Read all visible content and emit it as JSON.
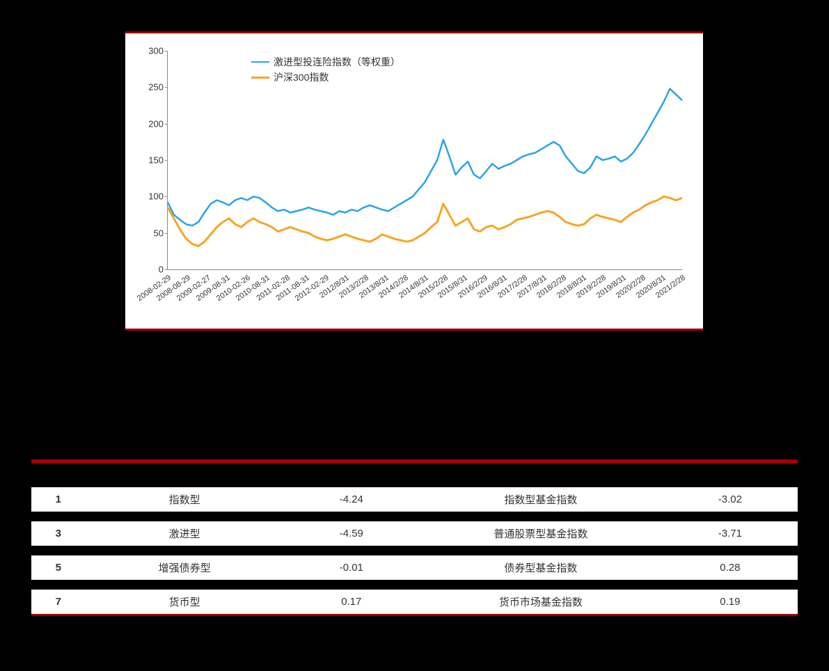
{
  "chart": {
    "type": "line",
    "background_color": "#ffffff",
    "border_rule_color": "#a00000",
    "axis_color": "#888888",
    "ylim": [
      0,
      300
    ],
    "ytick_step": 50,
    "yticks": [
      0,
      50,
      100,
      150,
      200,
      250,
      300
    ],
    "x_labels": [
      "2008-02-29",
      "2008-08-29",
      "2009-02-27",
      "2009-08-31",
      "2010-02-26",
      "2010-08-31",
      "2011-02-28",
      "2011-08-31",
      "2012-02-29",
      "2012/8/31",
      "2013/2/28",
      "2013/8/31",
      "2014/2/28",
      "2014/8/31",
      "2015/2/28",
      "2015/8/31",
      "2016/2/29",
      "2016/8/31",
      "2017/2/28",
      "2017/8/31",
      "2018/2/28",
      "2018/8/31",
      "2019/2/28",
      "2019/8/31",
      "2020/2/28",
      "2020/8/31",
      "2021/2/28"
    ],
    "x_label_fontsize": 11,
    "y_label_fontsize": 13,
    "x_label_rotation_deg": -35,
    "legend": {
      "position": "top-inside-left",
      "fontsize": 14,
      "items": [
        {
          "label": "激进型投连险指数（等权重）",
          "color": "#2aa3e8",
          "width": 2.5
        },
        {
          "label": "沪深300指数",
          "color": "#f5a623",
          "width": 3
        }
      ]
    },
    "series": [
      {
        "name": "激进型投连险指数（等权重）",
        "color": "#2aa3e8",
        "line_width": 2.5,
        "data": [
          92,
          75,
          68,
          62,
          60,
          65,
          78,
          90,
          95,
          92,
          88,
          95,
          98,
          95,
          100,
          98,
          92,
          85,
          80,
          82,
          78,
          80,
          82,
          85,
          82,
          80,
          78,
          75,
          80,
          78,
          82,
          80,
          85,
          88,
          85,
          82,
          80,
          85,
          90,
          95,
          100,
          110,
          120,
          135,
          150,
          178,
          155,
          130,
          140,
          148,
          130,
          125,
          135,
          145,
          138,
          142,
          145,
          150,
          155,
          158,
          160,
          165,
          170,
          175,
          170,
          155,
          145,
          135,
          132,
          140,
          155,
          150,
          152,
          155,
          148,
          152,
          160,
          172,
          185,
          200,
          215,
          230,
          248,
          240,
          232
        ]
      },
      {
        "name": "沪深300指数",
        "color": "#f5a623",
        "line_width": 3,
        "data": [
          85,
          70,
          55,
          42,
          35,
          32,
          38,
          48,
          58,
          65,
          70,
          62,
          58,
          65,
          70,
          65,
          62,
          58,
          52,
          55,
          58,
          55,
          52,
          50,
          45,
          42,
          40,
          42,
          45,
          48,
          45,
          42,
          40,
          38,
          42,
          48,
          45,
          42,
          40,
          38,
          40,
          45,
          50,
          58,
          65,
          90,
          75,
          60,
          65,
          70,
          55,
          52,
          58,
          60,
          55,
          58,
          62,
          68,
          70,
          72,
          75,
          78,
          80,
          78,
          72,
          65,
          62,
          60,
          62,
          70,
          75,
          72,
          70,
          68,
          65,
          72,
          78,
          82,
          88,
          92,
          95,
          100,
          98,
          95,
          98
        ]
      }
    ]
  },
  "table": {
    "border_top_color": "#a00000",
    "header_bg": "#000000",
    "header_fg": "#ffffff",
    "row_even_bg": "#000000",
    "row_even_fg": "#ffffff",
    "row_odd_bg": "#ffffff",
    "row_odd_fg": "#333333",
    "fontsize": 15,
    "columns": [
      "",
      "",
      "",
      "",
      ""
    ],
    "col_widths_pct": [
      6,
      22,
      15,
      27,
      15
    ],
    "rows": [
      [
        "1",
        "指数型",
        "-4.24",
        "指数型基金指数",
        "-3.02"
      ],
      [
        "",
        "",
        "",
        "",
        ""
      ],
      [
        "3",
        "激进型",
        "-4.59",
        "普通股票型基金指数",
        "-3.71"
      ],
      [
        "",
        "",
        "",
        "",
        ""
      ],
      [
        "5",
        "增强债券型",
        "-0.01",
        "债券型基金指数",
        "0.28"
      ],
      [
        "",
        "",
        "",
        "",
        ""
      ],
      [
        "7",
        "货币型",
        "0.17",
        "货币市场基金指数",
        "0.19"
      ]
    ]
  }
}
